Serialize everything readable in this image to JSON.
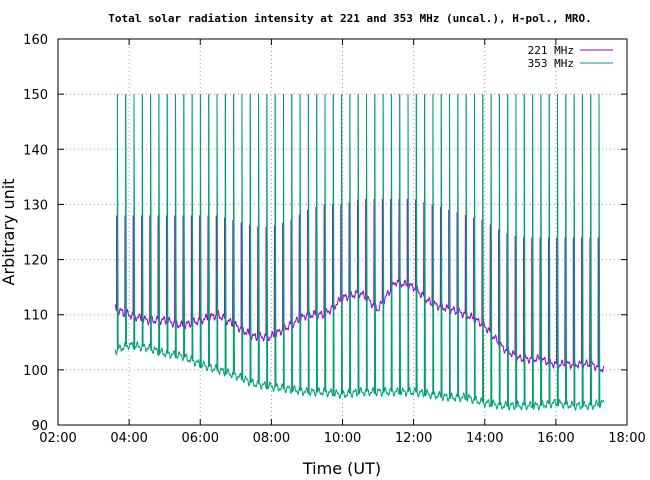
{
  "chart_data": {
    "type": "line",
    "title": "Total solar radiation intensity at 221 and 353 MHz (uncal.), H-pol., MRO.",
    "xlabel": "Time (UT)",
    "ylabel": "Arbitrary unit",
    "xlim": [
      2.0,
      18.0
    ],
    "ylim": [
      90,
      160
    ],
    "xticks": [
      "02:00",
      "04:00",
      "06:00",
      "08:00",
      "10:00",
      "12:00",
      "14:00",
      "16:00",
      "18:00"
    ],
    "yticks": [
      "90",
      "100",
      "110",
      "120",
      "130",
      "140",
      "150",
      "160"
    ],
    "grid": true,
    "legend_position": "top-right",
    "series": [
      {
        "name": "221 MHz",
        "color": "#9400d3",
        "x": [
          3.6,
          4.0,
          4.5,
          5.0,
          5.5,
          6.0,
          6.5,
          7.0,
          7.5,
          8.0,
          8.5,
          9.0,
          9.5,
          10.0,
          10.5,
          11.0,
          11.5,
          12.0,
          12.5,
          13.0,
          13.5,
          14.0,
          14.5,
          15.0,
          15.5,
          16.0,
          16.5,
          17.0,
          17.35
        ],
        "values": [
          111,
          110,
          109,
          109,
          108,
          109,
          110,
          108,
          106,
          106,
          108,
          110,
          110,
          113,
          114,
          111,
          116,
          115,
          112,
          111,
          110,
          108,
          104,
          102,
          102,
          101,
          101,
          101,
          100
        ],
        "spike_values": [
          128,
          128,
          128,
          128,
          128,
          128,
          128,
          127,
          126,
          126,
          127,
          129,
          130,
          130,
          131,
          131,
          131,
          131,
          130,
          129,
          128,
          127,
          125,
          124,
          124,
          124,
          124,
          124,
          124
        ]
      },
      {
        "name": "353 MHz",
        "color": "#009e73",
        "x": [
          3.6,
          4.0,
          4.5,
          5.0,
          5.5,
          6.0,
          6.5,
          7.0,
          7.5,
          8.0,
          8.5,
          9.0,
          9.5,
          10.0,
          10.5,
          11.0,
          11.5,
          12.0,
          12.5,
          13.0,
          13.5,
          14.0,
          14.5,
          15.0,
          15.5,
          16.0,
          16.5,
          17.0,
          17.35
        ],
        "values": [
          103.5,
          104.5,
          104,
          103,
          102.5,
          101,
          100,
          99,
          97.5,
          97,
          96.5,
          96,
          96,
          95.5,
          96,
          96,
          96,
          96,
          95.5,
          95,
          95,
          94,
          93.5,
          93.5,
          93.5,
          94,
          93.5,
          93.5,
          94
        ],
        "spike_values": [
          150,
          150,
          150,
          150,
          150,
          150,
          150,
          150,
          150,
          150,
          150,
          150,
          150,
          150,
          150,
          150,
          150,
          150,
          150,
          150,
          150,
          150,
          150,
          150,
          150,
          150,
          150,
          150,
          150
        ]
      }
    ]
  }
}
